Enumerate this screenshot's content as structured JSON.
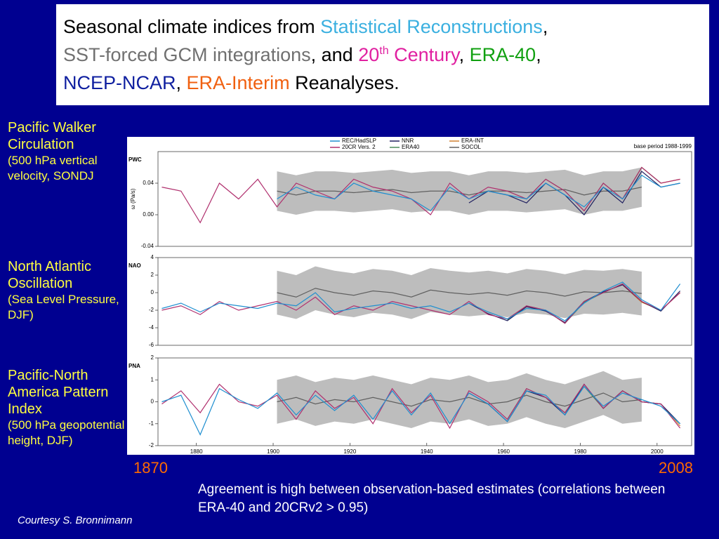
{
  "slide": {
    "title": [
      {
        "text": "Seasonal climate indices from ",
        "color": "#000000"
      },
      {
        "text": "Statistical Reconstructions",
        "color": "#3bb0e0"
      },
      {
        "text": ",",
        "color": "#000000"
      },
      {
        "text": "SST-forced GCM integrations",
        "color": "#707070",
        "break_before": true
      },
      {
        "text": ", and ",
        "color": "#000000"
      },
      {
        "text": "20",
        "color": "#e020a0"
      },
      {
        "text": "th",
        "color": "#e020a0",
        "sup": true
      },
      {
        "text": " Century",
        "color": "#e020a0"
      },
      {
        "text": ", ",
        "color": "#000000"
      },
      {
        "text": "ERA-40",
        "color": "#10a010"
      },
      {
        "text": ",",
        "color": "#000000"
      },
      {
        "text": "NCEP-NCAR",
        "color": "#1020a0",
        "break_before": true
      },
      {
        "text": ", ",
        "color": "#000000"
      },
      {
        "text": "ERA-Interim",
        "color": "#f06010"
      },
      {
        "text": " Reanalyses.",
        "color": "#000000"
      }
    ],
    "labels": [
      {
        "heading": "Pacific Walker Circulation",
        "detail": "(500 hPa vertical velocity, SONDJ"
      },
      {
        "heading": "North Atlantic Oscillation",
        "detail": "(Sea Level Pressure, DJF)"
      },
      {
        "heading": "Pacific-North America Pattern Index",
        "detail": "(500 hPa geopotential height, DJF)"
      }
    ],
    "start_year": "1870",
    "end_year": "2008",
    "note": "Agreement is high between observation-based estimates (correlations between ERA-40 and 20CRv2 > 0.95)",
    "credit": "Courtesy S. Bronnimann"
  },
  "chart_data": [
    {
      "type": "line",
      "panel": "PWC",
      "y_label": "ω (Pa/s)",
      "annotation": "base period 1988-1999",
      "x": [
        1871,
        1876,
        1881,
        1886,
        1891,
        1896,
        1901,
        1906,
        1911,
        1916,
        1921,
        1926,
        1931,
        1936,
        1941,
        1946,
        1951,
        1956,
        1961,
        1966,
        1971,
        1976,
        1981,
        1986,
        1991,
        1996,
        2001,
        2006
      ],
      "xlim": [
        1870,
        2009
      ],
      "ylim": [
        -0.04,
        0.08
      ],
      "yticks": [
        -0.04,
        {
          "value": 0,
          "label": "0.00"
        },
        0.04
      ],
      "band_color": "#bdbdbd",
      "band_upper": [
        null,
        null,
        null,
        null,
        null,
        null,
        0.055,
        0.05,
        0.055,
        0.055,
        0.053,
        0.055,
        0.057,
        0.053,
        0.055,
        0.055,
        0.05,
        0.055,
        0.055,
        0.053,
        0.055,
        0.057,
        0.05,
        0.055,
        0.055,
        0.06,
        null,
        null
      ],
      "band_lower": [
        null,
        null,
        null,
        null,
        null,
        null,
        0.005,
        0,
        0.005,
        0.005,
        0.003,
        0.005,
        0.007,
        0.003,
        0.005,
        0.005,
        0,
        0.005,
        0.005,
        0.003,
        0.005,
        0.007,
        0,
        0.005,
        0.005,
        0.01,
        null,
        null
      ],
      "series": [
        {
          "name": "REC/HadSLP",
          "color": "#1f8fd0",
          "values": [
            null,
            null,
            null,
            null,
            null,
            null,
            0.02,
            0.035,
            0.025,
            0.02,
            0.04,
            0.03,
            0.025,
            0.02,
            0.005,
            0.035,
            0.02,
            0.03,
            0.025,
            0.02,
            0.04,
            0.025,
            0.01,
            0.035,
            0.02,
            0.05,
            0.035,
            0.04
          ]
        },
        {
          "name": "20CR Vers. 2",
          "color": "#b0306e",
          "values": [
            0.035,
            0.03,
            -0.01,
            0.04,
            0.02,
            0.045,
            0.01,
            0.04,
            0.03,
            0.02,
            0.045,
            0.035,
            0.03,
            0.02,
            0,
            0.04,
            0.02,
            0.035,
            0.03,
            0.02,
            0.045,
            0.03,
            0.005,
            0.04,
            0.02,
            0.06,
            0.04,
            0.045
          ]
        },
        {
          "name": "NNR",
          "color": "#202060",
          "values": [
            null,
            null,
            null,
            null,
            null,
            null,
            null,
            null,
            null,
            null,
            null,
            null,
            null,
            null,
            null,
            null,
            0.015,
            0.03,
            0.025,
            0.015,
            0.04,
            0.025,
            0,
            0.035,
            0.015,
            0.055,
            0.035,
            0.04
          ]
        },
        {
          "name": "ERA40",
          "color": "#4a8a5a",
          "values": [
            null,
            null,
            null,
            null,
            null,
            null,
            null,
            null,
            null,
            null,
            null,
            null,
            null,
            null,
            null,
            null,
            null,
            null,
            0.03,
            0.02,
            0.045,
            0.03,
            0.005,
            0.04,
            0.02,
            0.06,
            0.04,
            null
          ]
        },
        {
          "name": "ERA-INT",
          "color": "#d08030",
          "values": [
            null,
            null,
            null,
            null,
            null,
            null,
            null,
            null,
            null,
            null,
            null,
            null,
            null,
            null,
            null,
            null,
            null,
            null,
            null,
            null,
            null,
            null,
            null,
            null,
            0.02,
            0.06,
            0.04,
            0.045
          ]
        },
        {
          "name": "SOCOL",
          "color": "#606060",
          "values": [
            null,
            null,
            null,
            null,
            null,
            null,
            0.03,
            0.025,
            0.03,
            0.03,
            0.028,
            0.03,
            0.032,
            0.028,
            0.03,
            0.03,
            0.025,
            0.03,
            0.03,
            0.028,
            0.03,
            0.032,
            0.025,
            0.03,
            0.03,
            0.035,
            null,
            null
          ]
        }
      ]
    },
    {
      "type": "line",
      "panel": "NAO",
      "x": [
        1871,
        1876,
        1881,
        1886,
        1891,
        1896,
        1901,
        1906,
        1911,
        1916,
        1921,
        1926,
        1931,
        1936,
        1941,
        1946,
        1951,
        1956,
        1961,
        1966,
        1971,
        1976,
        1981,
        1986,
        1991,
        1996,
        2001,
        2006
      ],
      "xlim": [
        1870,
        2009
      ],
      "ylim": [
        -6,
        4
      ],
      "yticks": [
        -6,
        -4,
        -2,
        0,
        2,
        4
      ],
      "band_color": "#bdbdbd",
      "band_upper": [
        null,
        null,
        null,
        null,
        null,
        null,
        2.5,
        2,
        3,
        2.5,
        2.2,
        2.7,
        2.5,
        2,
        2.8,
        2.5,
        2.3,
        2.5,
        2.2,
        2.7,
        2.5,
        2.1,
        2.6,
        2.5,
        2.7,
        2.4,
        null,
        null
      ],
      "band_lower": [
        null,
        null,
        null,
        null,
        null,
        null,
        -2.5,
        -3,
        -2,
        -2.5,
        -2.8,
        -2.3,
        -2.5,
        -3,
        -2.2,
        -2.5,
        -2.7,
        -2.5,
        -2.8,
        -2.3,
        -2.5,
        -2.9,
        -2.4,
        -2.5,
        -2.3,
        -2.6,
        null,
        null
      ],
      "series": [
        {
          "color": "#1f8fd0",
          "values": [
            -1.8,
            -1.2,
            -2.2,
            -1.2,
            -1.5,
            -1.8,
            -1.2,
            -1.5,
            0,
            -2.2,
            -1.8,
            -1.5,
            -1.2,
            -1.8,
            -1.5,
            -2.2,
            -1.2,
            -2.2,
            -3,
            -1.8,
            -2,
            -3.2,
            -1.2,
            0.2,
            1.2,
            -0.8,
            -2,
            1
          ]
        },
        {
          "color": "#b0306e",
          "values": [
            -2,
            -1.5,
            -2.5,
            -1,
            -2,
            -1.5,
            -1,
            -2,
            -0.5,
            -2.5,
            -1.5,
            -2,
            -1,
            -1.5,
            -2,
            -2.5,
            -1,
            -2.5,
            -3,
            -1.5,
            -2,
            -3.5,
            -1,
            0,
            1,
            -1,
            -2,
            0
          ]
        },
        {
          "color": "#202060",
          "values": [
            null,
            null,
            null,
            null,
            null,
            null,
            null,
            null,
            null,
            null,
            null,
            null,
            null,
            null,
            null,
            null,
            -1.2,
            -2.4,
            -3.2,
            -1.6,
            -2.1,
            -3.4,
            -1,
            0.1,
            0.9,
            -1,
            -2.1,
            0.2
          ]
        },
        {
          "color": "#4a8a5a",
          "values": [
            null,
            null,
            null,
            null,
            null,
            null,
            null,
            null,
            null,
            null,
            null,
            null,
            null,
            null,
            null,
            null,
            null,
            null,
            -3.1,
            -1.5,
            -2,
            -3.5,
            -1.1,
            0,
            1,
            -1,
            -2.1,
            null
          ]
        },
        {
          "color": "#d08030",
          "values": [
            null,
            null,
            null,
            null,
            null,
            null,
            null,
            null,
            null,
            null,
            null,
            null,
            null,
            null,
            null,
            null,
            null,
            null,
            null,
            null,
            null,
            null,
            null,
            null,
            0.9,
            -1.1,
            -2,
            0
          ]
        },
        {
          "color": "#606060",
          "values": [
            null,
            null,
            null,
            null,
            null,
            null,
            0,
            -0.5,
            0.5,
            0,
            -0.3,
            0.2,
            0,
            -0.5,
            0.3,
            0,
            -0.2,
            0,
            -0.3,
            0.2,
            0,
            -0.4,
            0.1,
            0,
            0.2,
            -0.1,
            null,
            null
          ]
        }
      ]
    },
    {
      "type": "line",
      "panel": "PNA",
      "x": [
        1871,
        1876,
        1881,
        1886,
        1891,
        1896,
        1901,
        1906,
        1911,
        1916,
        1921,
        1926,
        1931,
        1936,
        1941,
        1946,
        1951,
        1956,
        1961,
        1966,
        1971,
        1976,
        1981,
        1986,
        1991,
        1996,
        2001,
        2006
      ],
      "xlim": [
        1870,
        2009
      ],
      "ylim": [
        -2,
        2
      ],
      "yticks": [
        -2,
        -1,
        0,
        1,
        2
      ],
      "xticks": [
        1880,
        1900,
        1920,
        1940,
        1960,
        1980,
        2000
      ],
      "band_color": "#bdbdbd",
      "band_upper": [
        null,
        null,
        null,
        null,
        null,
        null,
        1,
        1.2,
        0.9,
        1.1,
        1,
        1.2,
        1,
        0.8,
        1.1,
        1,
        1.2,
        0.9,
        1,
        1.3,
        1,
        0.8,
        1.1,
        1.4,
        1,
        1.1,
        null,
        null
      ],
      "band_lower": [
        null,
        null,
        null,
        null,
        null,
        null,
        -1,
        -0.8,
        -1.1,
        -0.9,
        -1,
        -0.8,
        -1,
        -1.2,
        -0.9,
        -1,
        -0.8,
        -1.1,
        -1,
        -0.7,
        -1,
        -1.2,
        -0.9,
        -0.6,
        -1,
        -0.9,
        null,
        null
      ],
      "series": [
        {
          "color": "#1f8fd0",
          "values": [
            0,
            0.3,
            -1.5,
            0.6,
            0.1,
            -0.3,
            0.4,
            -0.6,
            0.3,
            -0.4,
            0.3,
            -0.8,
            0.5,
            -0.6,
            0.4,
            -1,
            0.4,
            -0.1,
            -0.9,
            0.5,
            0.3,
            -0.6,
            0.7,
            -0.2,
            0.4,
            0.1,
            -0.2,
            -1
          ]
        },
        {
          "color": "#b0306e",
          "values": [
            -0.1,
            0.5,
            -0.5,
            0.8,
            0,
            -0.2,
            0.3,
            -0.8,
            0.5,
            -0.3,
            0.2,
            -1,
            0.6,
            -0.5,
            0.3,
            -1.2,
            0.5,
            0,
            -0.8,
            0.6,
            0.2,
            -0.5,
            0.8,
            -0.3,
            0.5,
            0,
            -0.1,
            -1.2
          ]
        },
        {
          "color": "#202060",
          "values": [
            null,
            null,
            null,
            null,
            null,
            null,
            null,
            null,
            null,
            null,
            null,
            null,
            null,
            null,
            null,
            null,
            0.4,
            -0.1,
            -0.9,
            0.5,
            0.2,
            -0.6,
            0.8,
            -0.3,
            0.5,
            0,
            -0.1,
            -1
          ]
        },
        {
          "color": "#4a8a5a",
          "values": [
            null,
            null,
            null,
            null,
            null,
            null,
            null,
            null,
            null,
            null,
            null,
            null,
            null,
            null,
            null,
            null,
            null,
            null,
            -0.8,
            0.6,
            0.2,
            -0.5,
            0.7,
            -0.3,
            0.5,
            0,
            -0.1,
            null
          ]
        },
        {
          "color": "#d08030",
          "values": [
            null,
            null,
            null,
            null,
            null,
            null,
            null,
            null,
            null,
            null,
            null,
            null,
            null,
            null,
            null,
            null,
            null,
            null,
            null,
            null,
            null,
            null,
            null,
            null,
            0.5,
            0,
            -0.1,
            -1.1
          ]
        },
        {
          "color": "#606060",
          "values": [
            null,
            null,
            null,
            null,
            null,
            null,
            0,
            0.2,
            -0.1,
            0.1,
            0,
            0.2,
            0,
            -0.2,
            0.1,
            0,
            0.2,
            -0.1,
            0,
            0.3,
            0,
            -0.2,
            0.1,
            0.4,
            0,
            0.1,
            null,
            null
          ]
        }
      ]
    }
  ]
}
